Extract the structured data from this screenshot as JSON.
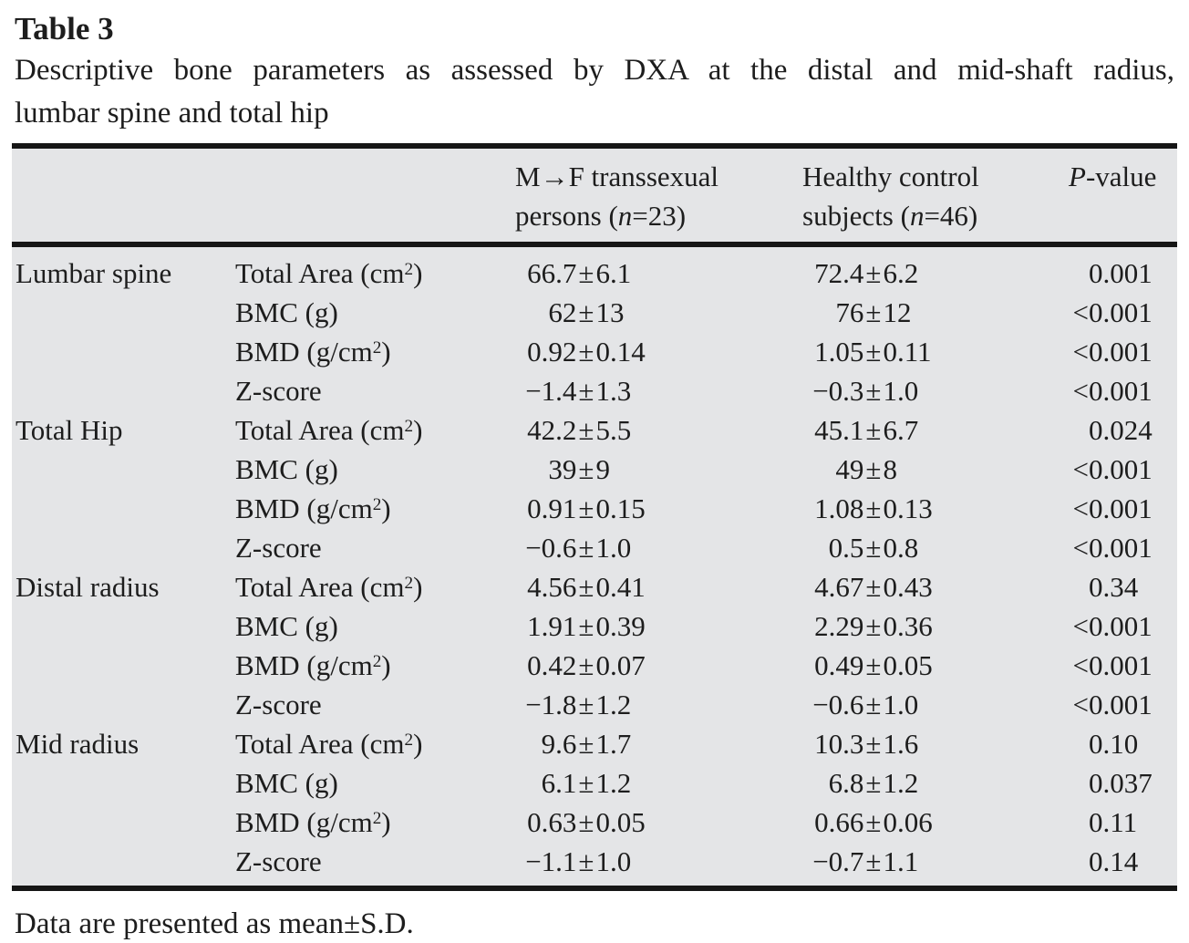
{
  "symbols": {
    "plus_minus": "±"
  },
  "caption": {
    "label": "Table 3",
    "line1": "Descriptive bone parameters as assessed by DXA at the distal and mid-shaft radius,",
    "line2": "lumbar spine and total hip"
  },
  "header": {
    "group1": {
      "line1": "M→F transsexual",
      "line2_pre": "persons (",
      "n": "n",
      "line2_post": "=23)"
    },
    "group2": {
      "line1": "Healthy control",
      "line2_pre": "subjects (",
      "n": "n",
      "line2_post": "=46)"
    },
    "p": {
      "italic": "P",
      "rest": "-value"
    }
  },
  "rows": [
    {
      "site": "Lumbar spine",
      "param": "Total Area (cm",
      "sup": "2",
      "param_end": ")",
      "m1": "66.7",
      "s1": "6.1",
      "m2": "72.4",
      "s2": "6.2",
      "pp": "",
      "pv": "0.001"
    },
    {
      "param": "BMC (g)",
      "sup": "",
      "param_end": "",
      "m1": "62",
      "s1": "13",
      "m2": "76",
      "s2": "12",
      "pp": "<",
      "pv": "0.001"
    },
    {
      "param": "BMD (g/cm",
      "sup": "2",
      "param_end": ")",
      "m1": "0.92",
      "s1": "0.14",
      "m2": "1.05",
      "s2": "0.11",
      "pp": "<",
      "pv": "0.001"
    },
    {
      "param": "Z-score",
      "sup": "",
      "param_end": "",
      "m1": "−1.4",
      "s1": "1.3",
      "m2": "−0.3",
      "s2": "1.0",
      "pp": "<",
      "pv": "0.001"
    },
    {
      "site": "Total Hip",
      "param": "Total Area (cm",
      "sup": "2",
      "param_end": ")",
      "m1": "42.2",
      "s1": "5.5",
      "m2": "45.1",
      "s2": "6.7",
      "pp": "",
      "pv": "0.024"
    },
    {
      "param": "BMC (g)",
      "sup": "",
      "param_end": "",
      "m1": "39",
      "s1": "9",
      "m2": "49",
      "s2": "8",
      "pp": "<",
      "pv": "0.001"
    },
    {
      "param": "BMD (g/cm",
      "sup": "2",
      "param_end": ")",
      "m1": "0.91",
      "s1": "0.15",
      "m2": "1.08",
      "s2": "0.13",
      "pp": "<",
      "pv": "0.001"
    },
    {
      "param": "Z-score",
      "sup": "",
      "param_end": "",
      "m1": "−0.6",
      "s1": "1.0",
      "m2": "0.5",
      "s2": "0.8",
      "pp": "<",
      "pv": "0.001"
    },
    {
      "site": "Distal radius",
      "param": "Total Area (cm",
      "sup": "2",
      "param_end": ")",
      "m1": "4.56",
      "s1": "0.41",
      "m2": "4.67",
      "s2": "0.43",
      "pp": "",
      "pv": "0.34"
    },
    {
      "param": "BMC (g)",
      "sup": "",
      "param_end": "",
      "m1": "1.91",
      "s1": "0.39",
      "m2": "2.29",
      "s2": "0.36",
      "pp": "<",
      "pv": "0.001"
    },
    {
      "param": "BMD (g/cm",
      "sup": "2",
      "param_end": ")",
      "m1": "0.42",
      "s1": "0.07",
      "m2": "0.49",
      "s2": "0.05",
      "pp": "<",
      "pv": "0.001"
    },
    {
      "param": "Z-score",
      "sup": "",
      "param_end": "",
      "m1": "−1.8",
      "s1": "1.2",
      "m2": "−0.6",
      "s2": "1.0",
      "pp": "<",
      "pv": "0.001"
    },
    {
      "site": "Mid radius",
      "param": "Total Area (cm",
      "sup": "2",
      "param_end": ")",
      "m1": "9.6",
      "s1": "1.7",
      "m2": "10.3",
      "s2": "1.6",
      "pp": "",
      "pv": "0.10"
    },
    {
      "param": "BMC (g)",
      "sup": "",
      "param_end": "",
      "m1": "6.1",
      "s1": "1.2",
      "m2": "6.8",
      "s2": "1.2",
      "pp": "",
      "pv": "0.037"
    },
    {
      "param": "BMD (g/cm",
      "sup": "2",
      "param_end": ")",
      "m1": "0.63",
      "s1": "0.05",
      "m2": "0.66",
      "s2": "0.06",
      "pp": "",
      "pv": "0.11"
    },
    {
      "param": "Z-score",
      "sup": "",
      "param_end": "",
      "m1": "−1.1",
      "s1": "1.0",
      "m2": "−0.7",
      "s2": "1.1",
      "pp": "",
      "pv": "0.14"
    }
  ],
  "footer": "Data are presented as mean±S.D."
}
